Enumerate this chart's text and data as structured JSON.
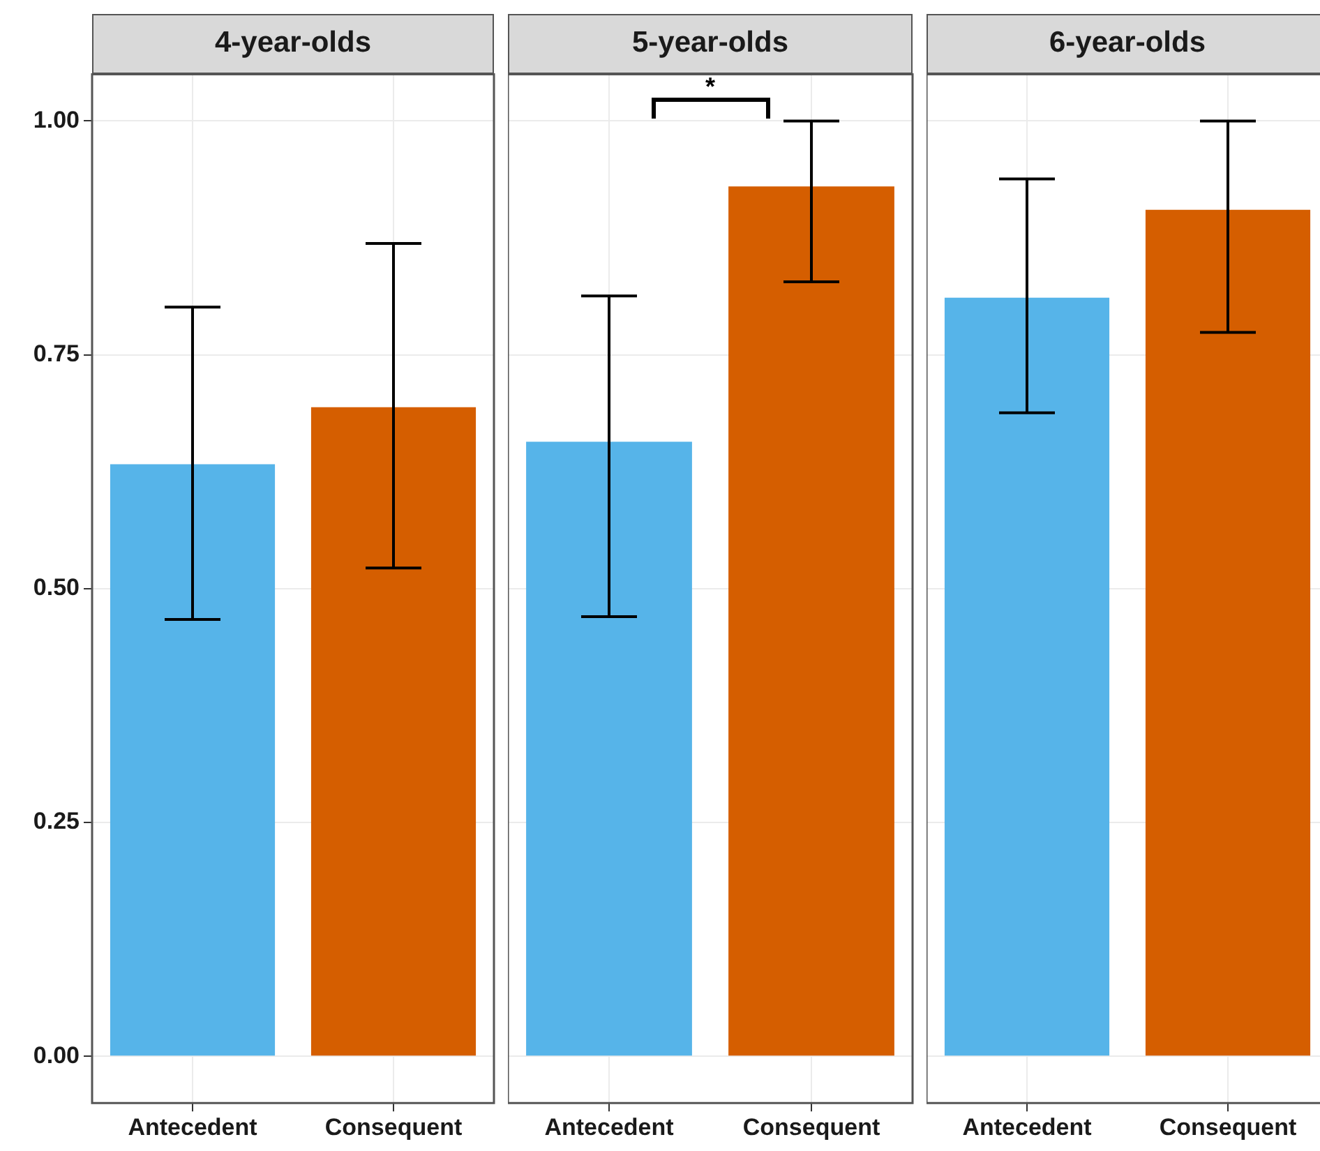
{
  "chart_data": [
    {
      "type": "bar",
      "title": "4-year-olds",
      "categories": [
        "Antecedent",
        "Consequent"
      ],
      "values": [
        0.633,
        0.694
      ],
      "colors": [
        "#56b4e9",
        "#d55e00"
      ],
      "errors": [
        [
          0.467,
          0.801
        ],
        [
          0.522,
          0.869
        ]
      ],
      "ylim": [
        -0.05,
        1.05
      ],
      "yticks": [
        {
          "value": 0,
          "label": "0.00"
        },
        {
          "value": 0.25,
          "label": "0.25"
        },
        {
          "value": 0.5,
          "label": "0.50"
        },
        {
          "value": 0.75,
          "label": "0.75"
        },
        {
          "value": 1,
          "label": "1.00"
        }
      ],
      "grid": true
    },
    {
      "type": "bar",
      "title": "5-year-olds",
      "categories": [
        "Antecedent",
        "Consequent"
      ],
      "values": [
        0.657,
        0.93
      ],
      "colors": [
        "#56b4e9",
        "#d55e00"
      ],
      "errors": [
        [
          0.47,
          0.813
        ],
        [
          0.828,
          1.0
        ]
      ],
      "ylim": [
        -0.05,
        1.05
      ],
      "yticks": [
        0,
        0.25,
        0.5,
        0.75,
        1
      ],
      "grid": true,
      "tick_labels": "x",
      "annotations": [
        "*"
      ]
    },
    {
      "type": "bar",
      "title": "6-year-olds",
      "categories": [
        "Antecedent",
        "Consequent"
      ],
      "values": [
        0.811,
        0.905
      ],
      "colors": [
        "#56b4e9",
        "#d55e00"
      ],
      "errors": [
        [
          0.688,
          0.938
        ],
        [
          0.774,
          1.0
        ]
      ],
      "ylim": [
        -0.05,
        1.05
      ],
      "yticks": [
        0,
        0.25,
        0.5,
        0.75,
        1
      ],
      "grid": true,
      "tick_labels": "x"
    }
  ]
}
